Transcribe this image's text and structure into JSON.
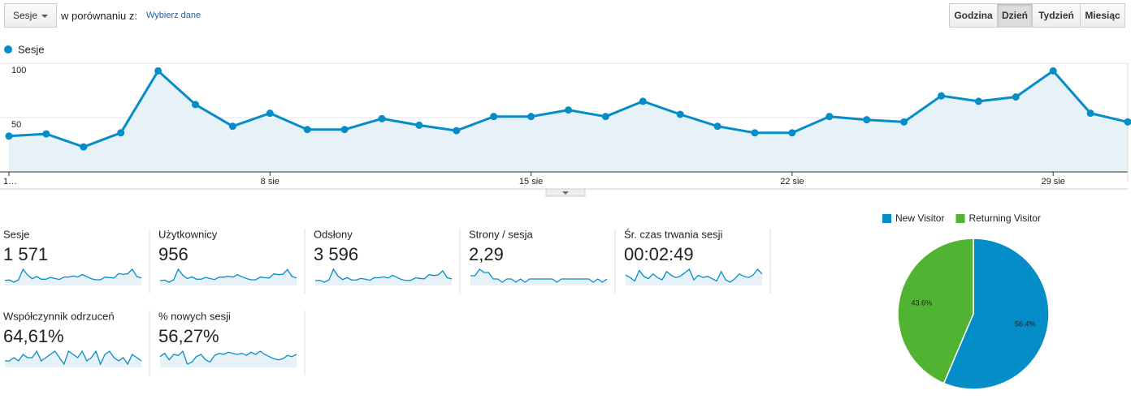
{
  "controls": {
    "metric": "Sesje",
    "compare_label": "w porównaniu z:",
    "compare_link": "Wybierz dane",
    "periods": [
      "Godzina",
      "Dzień",
      "Tydzień",
      "Miesiąc"
    ],
    "active_period": 1
  },
  "chart_data": [
    {
      "type": "line",
      "categories": [
        "1…",
        null,
        null,
        null,
        null,
        null,
        null,
        "8 sie",
        null,
        null,
        null,
        null,
        null,
        null,
        "15 sie",
        null,
        null,
        null,
        null,
        null,
        null,
        "22 sie",
        null,
        null,
        null,
        null,
        null,
        null,
        "29 sie",
        null,
        null
      ],
      "series": [
        {
          "name": "Sesje",
          "color": "#058dc7",
          "values": [
            33,
            35,
            23,
            36,
            93,
            62,
            42,
            54,
            39,
            39,
            49,
            43,
            38,
            51,
            51,
            57,
            51,
            65,
            53,
            42,
            36,
            36,
            51,
            48,
            46,
            70,
            65,
            69,
            93,
            54,
            46
          ]
        }
      ],
      "ylim": [
        0,
        100
      ],
      "yticks": [
        50,
        100
      ],
      "grid": true
    },
    {
      "type": "pie",
      "categories": [
        "New Visitor",
        "Returning Visitor"
      ],
      "values": [
        56.4,
        43.6
      ],
      "value_labels": [
        "56.4%",
        "43.6%"
      ],
      "colors": [
        "#058dc7",
        "#50b432"
      ],
      "legend": "top"
    }
  ],
  "metrics": [
    {
      "label": "Sesje",
      "value": "1 571"
    },
    {
      "label": "Użytkownicy",
      "value": "956",
      "spark": [
        20,
        22,
        15,
        23,
        58,
        38,
        27,
        33,
        25,
        25,
        31,
        27,
        24,
        32,
        32,
        35,
        32,
        40,
        33,
        27,
        23,
        23,
        32,
        30,
        29,
        43,
        40,
        42,
        57,
        34,
        29
      ]
    },
    {
      "label": "Odsłony",
      "value": "3 596",
      "spark": [
        80,
        85,
        60,
        90,
        230,
        140,
        95,
        120,
        90,
        88,
        110,
        100,
        85,
        120,
        118,
        130,
        115,
        150,
        122,
        95,
        82,
        84,
        118,
        110,
        105,
        160,
        148,
        155,
        210,
        120,
        104
      ]
    },
    {
      "label": "Strony / sesja",
      "value": "2,29",
      "spark": [
        2.4,
        2.4,
        2.6,
        2.5,
        2.5,
        2.3,
        2.3,
        2.2,
        2.3,
        2.3,
        2.2,
        2.3,
        2.2,
        2.3,
        2.3,
        2.3,
        2.3,
        2.3,
        2.3,
        2.2,
        2.3,
        2.3,
        2.3,
        2.3,
        2.3,
        2.3,
        2.3,
        2.2,
        2.3,
        2.2,
        2.3
      ]
    },
    {
      "label": "Śr. czas trwania sesji",
      "value": "00:02:49",
      "spark": [
        170,
        150,
        120,
        210,
        160,
        140,
        180,
        150,
        130,
        200,
        170,
        150,
        160,
        190,
        220,
        130,
        170,
        150,
        160,
        140,
        120,
        200,
        130,
        110,
        140,
        180,
        160,
        150,
        170,
        220,
        180
      ]
    },
    {
      "label": "Współczynnik odrzuceń",
      "value": "64,61%",
      "spark": [
        63,
        63,
        64,
        63,
        65,
        64,
        64,
        66,
        63,
        64,
        65,
        66,
        64,
        62,
        66,
        65,
        64,
        66,
        63,
        64,
        66,
        62,
        65,
        66,
        64,
        63,
        64,
        62,
        65,
        64,
        63
      ]
    },
    {
      "label": "% nowych sesji",
      "value": "56,27%",
      "spark": [
        55,
        58,
        52,
        57,
        56,
        60,
        48,
        50,
        55,
        57,
        52,
        50,
        56,
        58,
        57,
        59,
        58,
        57,
        58,
        56,
        59,
        57,
        60,
        57,
        55,
        53,
        52,
        53,
        56,
        55,
        57
      ]
    }
  ]
}
